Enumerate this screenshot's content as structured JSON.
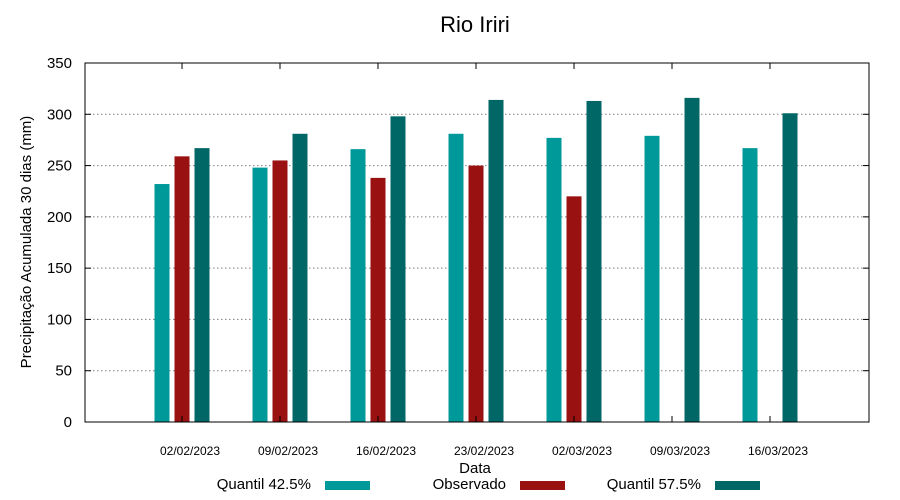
{
  "chart_data": {
    "type": "bar",
    "title": "Rio Iriri",
    "xlabel": "Data",
    "ylabel": "Precipitação Acumulada 30 dias (mm)",
    "ylim": [
      0,
      350
    ],
    "yticks": [
      "0",
      "50",
      "100",
      "150",
      "200",
      "250",
      "300",
      "350"
    ],
    "categories": [
      "02/02/2023",
      "09/02/2023",
      "16/02/2023",
      "23/02/2023",
      "02/03/2023",
      "09/03/2023",
      "16/03/2023"
    ],
    "grid": true,
    "legend_position": "bottom",
    "series": [
      {
        "name": "Quantil 42.5%",
        "color": "#009999",
        "values": [
          232,
          248,
          266,
          281,
          277,
          279,
          267
        ]
      },
      {
        "name": "Observado",
        "color": "#991111",
        "values": [
          259,
          255,
          238,
          250,
          220,
          null,
          null
        ]
      },
      {
        "name": "Quantil 57.5%",
        "color": "#006666",
        "values": [
          267,
          281,
          298,
          314,
          313,
          316,
          301
        ]
      }
    ]
  }
}
